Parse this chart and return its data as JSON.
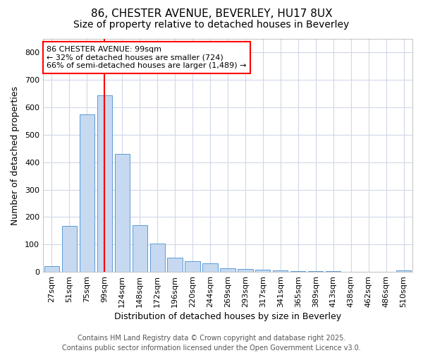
{
  "title": "86, CHESTER AVENUE, BEVERLEY, HU17 8UX",
  "subtitle": "Size of property relative to detached houses in Beverley",
  "xlabel": "Distribution of detached houses by size in Beverley",
  "ylabel": "Number of detached properties",
  "categories": [
    "27sqm",
    "51sqm",
    "75sqm",
    "99sqm",
    "124sqm",
    "148sqm",
    "172sqm",
    "196sqm",
    "220sqm",
    "244sqm",
    "269sqm",
    "293sqm",
    "317sqm",
    "341sqm",
    "365sqm",
    "389sqm",
    "413sqm",
    "438sqm",
    "462sqm",
    "486sqm",
    "510sqm"
  ],
  "values": [
    20,
    168,
    575,
    643,
    430,
    170,
    102,
    52,
    40,
    32,
    12,
    10,
    7,
    5,
    4,
    3,
    2,
    1,
    1,
    0,
    5
  ],
  "bar_color": "#c6d9f0",
  "bar_edge_color": "#5b9bd5",
  "vline_x_index": 3,
  "vline_color": "red",
  "annotation_text": "86 CHESTER AVENUE: 99sqm\n← 32% of detached houses are smaller (724)\n66% of semi-detached houses are larger (1,489) →",
  "annotation_box_facecolor": "white",
  "annotation_box_edgecolor": "red",
  "ylim": [
    0,
    850
  ],
  "yticks": [
    0,
    100,
    200,
    300,
    400,
    500,
    600,
    700,
    800
  ],
  "footer": "Contains HM Land Registry data © Crown copyright and database right 2025.\nContains public sector information licensed under the Open Government Licence v3.0.",
  "background_color": "#ffffff",
  "plot_background_color": "#ffffff",
  "grid_color": "#d0d8e8",
  "title_fontsize": 11,
  "subtitle_fontsize": 10,
  "xlabel_fontsize": 9,
  "ylabel_fontsize": 9,
  "tick_fontsize": 8,
  "annotation_fontsize": 8,
  "footer_fontsize": 7
}
